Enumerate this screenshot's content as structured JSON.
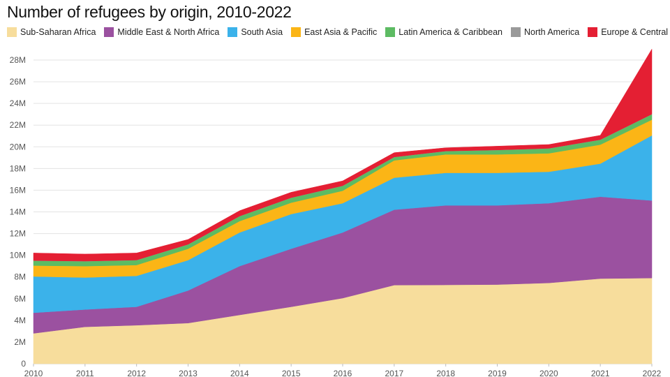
{
  "chart_data": {
    "type": "area",
    "stacked": true,
    "title": "Number of refugees by origin, 2010-2022",
    "xlabel": "",
    "ylabel": "",
    "x": [
      "2010",
      "2011",
      "2012",
      "2013",
      "2014",
      "2015",
      "2016",
      "2017",
      "2018",
      "2019",
      "2020",
      "2021",
      "2022"
    ],
    "ylim": [
      0,
      29
    ],
    "yticks": [
      0,
      2,
      4,
      6,
      8,
      10,
      12,
      14,
      16,
      18,
      20,
      22,
      24,
      26,
      28
    ],
    "ytick_labels": [
      "0",
      "2M",
      "4M",
      "6M",
      "8M",
      "10M",
      "12M",
      "14M",
      "16M",
      "18M",
      "20M",
      "22M",
      "24M",
      "26M",
      "28M"
    ],
    "grid": true,
    "legend_position": "top-left",
    "series": [
      {
        "name": "Sub-Saharan Africa",
        "color": "#f7dd9c",
        "values": [
          2.8,
          3.4,
          3.55,
          3.75,
          4.5,
          5.25,
          6.05,
          7.25,
          7.27,
          7.3,
          7.45,
          7.85,
          7.9
        ]
      },
      {
        "name": "Middle East & North Africa",
        "color": "#9b51a0",
        "values": [
          1.9,
          1.6,
          1.7,
          3.0,
          4.5,
          5.35,
          6.05,
          6.95,
          7.33,
          7.3,
          7.35,
          7.55,
          7.15
        ]
      },
      {
        "name": "South Asia",
        "color": "#3bb2ea",
        "values": [
          3.35,
          2.95,
          2.85,
          2.8,
          3.1,
          3.2,
          2.7,
          2.95,
          3.0,
          3.0,
          2.9,
          3.05,
          6.0
        ]
      },
      {
        "name": "East Asia & Pacific",
        "color": "#fbb516",
        "values": [
          1.0,
          1.05,
          1.0,
          1.05,
          1.05,
          1.05,
          1.15,
          1.6,
          1.7,
          1.7,
          1.7,
          1.75,
          1.45
        ]
      },
      {
        "name": "Latin America & Caribbean",
        "color": "#5dbb63",
        "values": [
          0.45,
          0.45,
          0.45,
          0.4,
          0.45,
          0.45,
          0.45,
          0.3,
          0.3,
          0.4,
          0.45,
          0.45,
          0.5
        ]
      },
      {
        "name": "North America",
        "color": "#9a9a9a",
        "values": [
          0.01,
          0.01,
          0.01,
          0.01,
          0.01,
          0.01,
          0.01,
          0.01,
          0.01,
          0.01,
          0.01,
          0.01,
          0.01
        ]
      },
      {
        "name": "Europe & Central Asia",
        "color": "#e41f33",
        "values": [
          0.7,
          0.65,
          0.65,
          0.45,
          0.5,
          0.5,
          0.45,
          0.4,
          0.3,
          0.35,
          0.35,
          0.4,
          6.0
        ]
      }
    ]
  }
}
